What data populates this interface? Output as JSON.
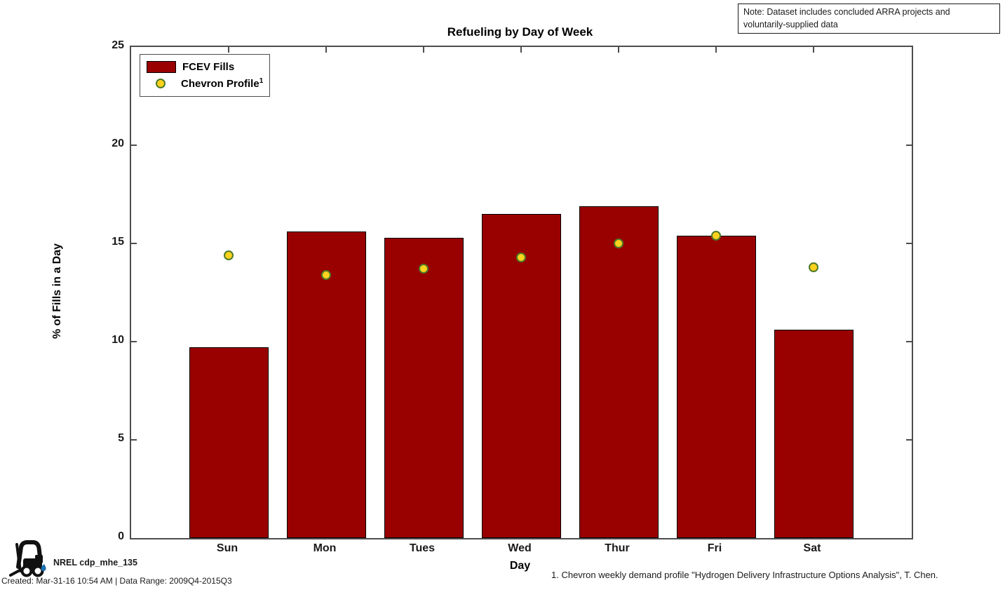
{
  "title": "Refueling by Day of Week",
  "note": "Note: Dataset includes concluded ARRA projects and voluntarily-supplied data",
  "legend": {
    "items": [
      {
        "label": "FCEV Fills",
        "sup": ""
      },
      {
        "label": "Chevron Profile",
        "sup": "1"
      }
    ]
  },
  "footer": {
    "brand": "NREL cdp_mhe_135",
    "created": "Created: Mar-31-16 10:54 AM | Data Range: 2009Q4-2015Q3",
    "footnote": "1. Chevron weekly demand profile \"Hydrogen Delivery Infrastructure Options Analysis\", T. Chen."
  },
  "chart_data": {
    "type": "bar",
    "title": "Refueling by Day of Week",
    "xlabel": "Day",
    "ylabel": "% of Fills in a Day",
    "ylim": [
      0,
      25
    ],
    "yticks": [
      0,
      5,
      10,
      15,
      20,
      25
    ],
    "grid": false,
    "legend_position": "top-left",
    "categories": [
      "Sun",
      "Mon",
      "Tues",
      "Wed",
      "Thur",
      "Fri",
      "Sat"
    ],
    "series": [
      {
        "name": "FCEV Fills",
        "type": "bar",
        "color": "#990000",
        "edge_color": "#000000",
        "values": [
          9.7,
          15.6,
          15.3,
          16.5,
          16.9,
          15.4,
          10.6
        ]
      },
      {
        "name": "Chevron Profile",
        "type": "scatter",
        "color": "#ffd21e",
        "edge_color": "#4e7a28",
        "values": [
          14.4,
          13.4,
          13.7,
          14.3,
          15.0,
          15.4,
          13.8
        ]
      }
    ],
    "colors": {
      "axis": "#4d4d4d",
      "bar": "#990000",
      "marker": "#ffd21e",
      "marker_edge": "#4e7a28"
    }
  }
}
